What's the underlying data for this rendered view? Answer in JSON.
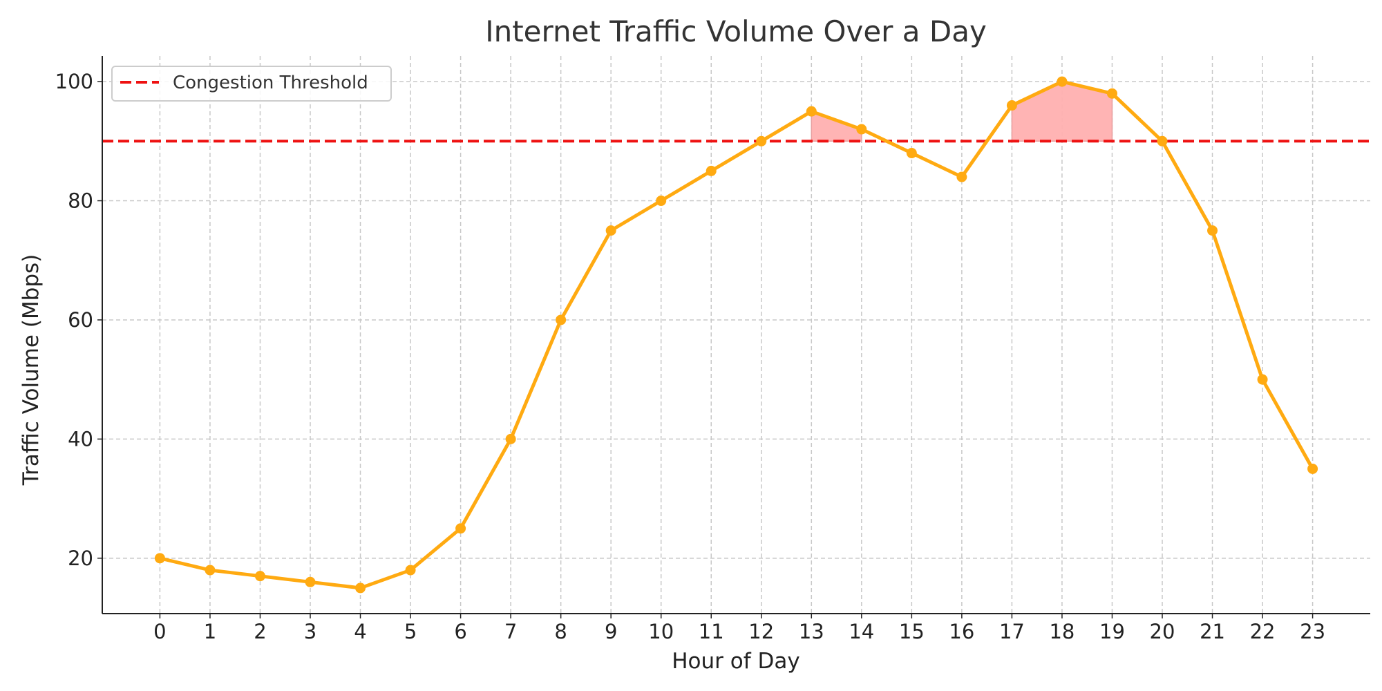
{
  "chart_data": {
    "type": "line",
    "title": "Internet Traffic Volume Over a Day",
    "xlabel": "Hour of Day",
    "ylabel": "Traffic Volume (Mbps)",
    "x": [
      0,
      1,
      2,
      3,
      4,
      5,
      6,
      7,
      8,
      9,
      10,
      11,
      12,
      13,
      14,
      15,
      16,
      17,
      18,
      19,
      20,
      21,
      22,
      23
    ],
    "series": [
      {
        "values": [
          20,
          18,
          17,
          16,
          15,
          18,
          25,
          40,
          60,
          75,
          80,
          85,
          90,
          95,
          92,
          88,
          84,
          96,
          100,
          98,
          90,
          75,
          50,
          35
        ],
        "color": "#FFAA11"
      }
    ],
    "threshold": {
      "name": "Congestion Threshold",
      "value": 90,
      "color": "#EE1111",
      "style": "dashed"
    },
    "shaded_regions": [
      {
        "x_start": 13,
        "x_end": 14
      },
      {
        "x_start": 17,
        "x_end": 19
      }
    ],
    "shade_color": "#FFB0B0",
    "xlim": [
      -1.15,
      24.15
    ],
    "ylim": [
      10.7,
      104.3
    ],
    "yticks": [
      20,
      40,
      60,
      80,
      100
    ],
    "xticks": [
      0,
      1,
      2,
      3,
      4,
      5,
      6,
      7,
      8,
      9,
      10,
      11,
      12,
      13,
      14,
      15,
      16,
      17,
      18,
      19,
      20,
      21,
      22,
      23
    ],
    "grid": true,
    "legend_position": "top-left"
  }
}
